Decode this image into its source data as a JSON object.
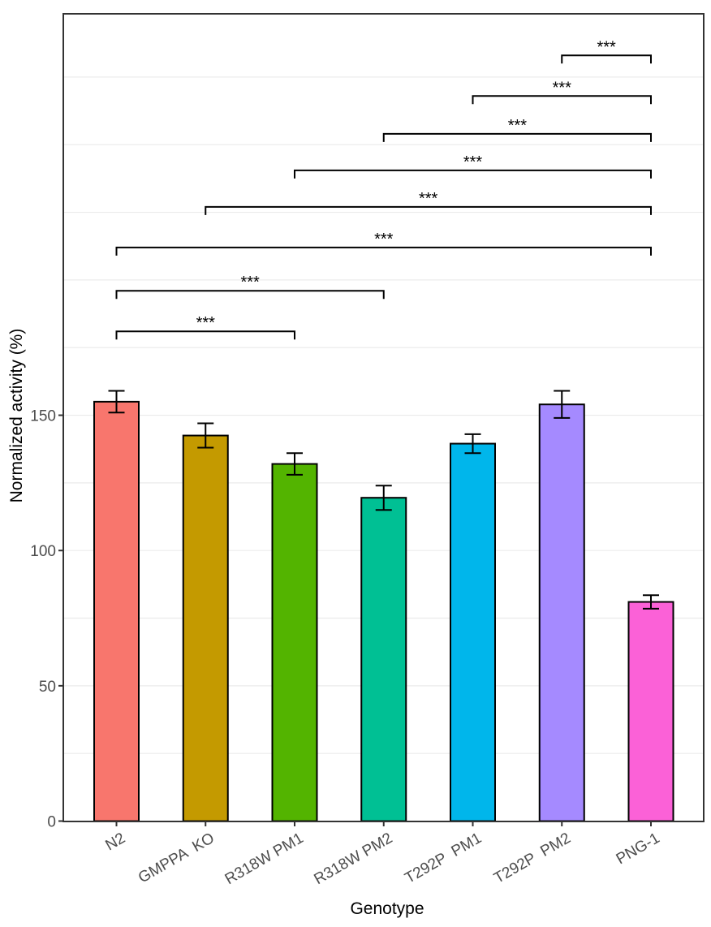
{
  "chart_data": {
    "type": "bar",
    "xlabel": "Genotype",
    "ylabel": "Normalized activity (%)",
    "ylim": [
      0,
      298
    ],
    "yticks": [
      0,
      50,
      100,
      150
    ],
    "grid": true,
    "legend": "none",
    "categories": [
      "N2",
      "GMPPA  KO",
      "R318W PM1",
      "R318W PM2",
      "T292P  PM1",
      "T292P  PM2",
      "PNG-1"
    ],
    "values": [
      155,
      142.5,
      132,
      119.5,
      139.5,
      154,
      81
    ],
    "errors": [
      4,
      4.5,
      4,
      4.5,
      3.5,
      5,
      2.5
    ],
    "colors": [
      "#F8766D",
      "#C49A00",
      "#53B400",
      "#00C094",
      "#00B6EB",
      "#A58AFF",
      "#FB61D7"
    ],
    "significance": [
      {
        "from": 0,
        "to": 2,
        "y": 181,
        "label": "***"
      },
      {
        "from": 0,
        "to": 3,
        "y": 196,
        "label": "***"
      },
      {
        "from": 0,
        "to": 6,
        "y": 212,
        "label": "***"
      },
      {
        "from": 1,
        "to": 6,
        "y": 227,
        "label": "***"
      },
      {
        "from": 2,
        "to": 6,
        "y": 240.5,
        "label": "***"
      },
      {
        "from": 3,
        "to": 6,
        "y": 254,
        "label": "***"
      },
      {
        "from": 4,
        "to": 6,
        "y": 268,
        "label": "***"
      },
      {
        "from": 5,
        "to": 6,
        "y": 283,
        "label": "***"
      }
    ]
  }
}
